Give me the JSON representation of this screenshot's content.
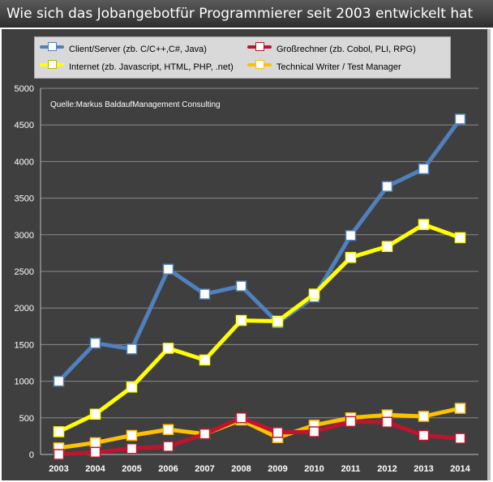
{
  "title": "Wie sich das Jobangebotfür Programmierer seit 2003 entwickelt hat",
  "source_note": "Quelle:Markus BaldaufManagement Consulting",
  "colors": {
    "background": "#3f3f3f",
    "grid": "#8a8a8a",
    "axis_text": "#ffffff",
    "marker_fill": "#ffffff"
  },
  "legend": [
    {
      "label": "Client/Server (zb. C/C++,C#, Java)",
      "color": "#4f81bd"
    },
    {
      "label": "Großrechner (zb. Cobol, PLI, RPG)",
      "color": "#c0142e"
    },
    {
      "label": "Internet (zb. Javascript, HTML, PHP, .net)",
      "color": "#ffff00"
    },
    {
      "label": "Technical Writer / Test Manager",
      "color": "#ffc000"
    }
  ],
  "chart_data": {
    "type": "line",
    "categories": [
      "2003",
      "2004",
      "2005",
      "2006",
      "2007",
      "2008",
      "2009",
      "2010",
      "2011",
      "2012",
      "2013",
      "2014"
    ],
    "ylim": [
      0,
      5000
    ],
    "yticks": [
      0,
      500,
      1000,
      1500,
      2000,
      2500,
      3000,
      3500,
      4000,
      4500,
      5000
    ],
    "grid": "horizontal",
    "legend_position": "top",
    "series": [
      {
        "name": "Client/Server (zb. C/C++,C#, Java)",
        "color": "#4f81bd",
        "values": [
          1000,
          1520,
          1440,
          2530,
          2190,
          2300,
          1800,
          2150,
          2990,
          3660,
          3900,
          4580
        ]
      },
      {
        "name": "Internet (zb. Javascript, HTML, PHP, .net)",
        "color": "#ffff00",
        "values": [
          310,
          550,
          920,
          1450,
          1290,
          1830,
          1820,
          2190,
          2690,
          2840,
          3140,
          2960
        ]
      },
      {
        "name": "Technical Writer / Test Manager",
        "color": "#ffc000",
        "values": [
          90,
          160,
          260,
          340,
          280,
          470,
          230,
          400,
          500,
          540,
          520,
          630
        ]
      },
      {
        "name": "Großrechner (zb. Cobol, PLI, RPG)",
        "color": "#c0142e",
        "values": [
          0,
          30,
          80,
          110,
          280,
          500,
          300,
          310,
          450,
          440,
          260,
          220
        ]
      }
    ]
  }
}
